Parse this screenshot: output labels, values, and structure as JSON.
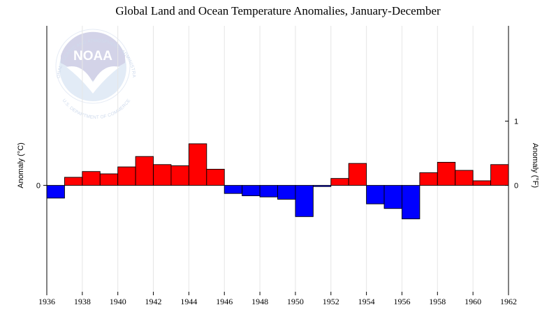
{
  "chart_data": {
    "type": "bar",
    "title": "Global Land and Ocean Temperature Anomalies, January-December",
    "ylabel_left": "Anomaly (°C)",
    "ylabel_right": "Anomaly (°F)",
    "xlabel": "",
    "x": [
      1936,
      1937,
      1938,
      1939,
      1940,
      1941,
      1942,
      1943,
      1944,
      1945,
      1946,
      1947,
      1948,
      1949,
      1950,
      1951,
      1952,
      1953,
      1954,
      1955,
      1956,
      1957,
      1958,
      1959,
      1960,
      1961
    ],
    "values": [
      -0.11,
      0.07,
      0.12,
      0.1,
      0.16,
      0.25,
      0.18,
      0.17,
      0.36,
      0.14,
      -0.07,
      -0.09,
      -0.1,
      -0.12,
      -0.27,
      -0.01,
      0.06,
      0.19,
      -0.16,
      -0.2,
      -0.29,
      0.11,
      0.2,
      0.13,
      0.04,
      0.18
    ],
    "x_ticks": [
      1936,
      1938,
      1940,
      1942,
      1944,
      1946,
      1948,
      1950,
      1952,
      1954,
      1956,
      1958,
      1960,
      1962
    ],
    "xlim": [
      1936,
      1962
    ],
    "ylim_celsius": [
      -0.92,
      1.38
    ],
    "y_ticks_left": [
      0
    ],
    "y_ticks_right": [
      0,
      1
    ],
    "y_tick_labels_right": [
      "0",
      "1"
    ],
    "grid": "vertical",
    "colors": {
      "positive": "#ff0000",
      "negative": "#0000ff",
      "grid": "#e6e6e6",
      "outline": "#000000"
    }
  },
  "logo": {
    "text": "NOAA",
    "ring_top": "NATIONAL OCEANIC AND ATMOSPHERIC ADMINISTRATION",
    "ring_bottom": "U.S. DEPARTMENT OF COMMERCE"
  }
}
